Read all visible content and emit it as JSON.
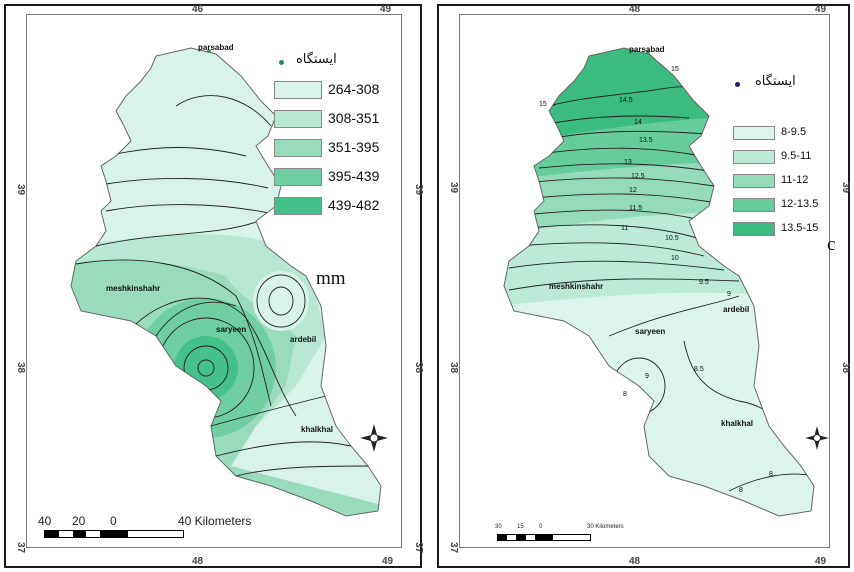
{
  "left_map": {
    "ticks": {
      "top_left": "46",
      "top_right": "49",
      "bottom_left": "48",
      "bottom_right": "49",
      "lat_upper": "39",
      "lat_lower": "38",
      "lat_bottom": "37"
    },
    "places": {
      "parsabad": "parsabad",
      "meshkinshahr": "meshkinshahr",
      "ardebil": "ardebil",
      "saryeen": "saryeen",
      "khalkhal": "khalkhal"
    },
    "station_key": "ایستگاه",
    "legend": [
      {
        "label": "264-308",
        "color": "#d9f3ea"
      },
      {
        "label": "308-351",
        "color": "#b8e8d4"
      },
      {
        "label": "351-395",
        "color": "#98dcbd"
      },
      {
        "label": "395-439",
        "color": "#6fcfa3"
      },
      {
        "label": "439-482",
        "color": "#45c08a"
      }
    ],
    "unit": "mm",
    "scale_labels": [
      "40",
      "20",
      "0",
      "40 Kilometers"
    ]
  },
  "right_map": {
    "ticks": {
      "top_left": "48",
      "top_right": "49",
      "bottom_left": "48",
      "bottom_right": "49",
      "lat_upper": "39",
      "lat_lower": "38",
      "lat_bottom": "37"
    },
    "places": {
      "parsabad": "parsabad",
      "meshkinshahr": "meshkinshahr",
      "ardebil": "ardebil",
      "saryeen": "saryeen",
      "khalkhal": "khalkhal"
    },
    "station_key": "ایستگاه",
    "legend": [
      {
        "label": "8-9.5",
        "color": "#dcf4ec"
      },
      {
        "label": "9.5-11",
        "color": "#bcead7"
      },
      {
        "label": "11-12",
        "color": "#93dbba"
      },
      {
        "label": "12-13.5",
        "color": "#66cc9c"
      },
      {
        "label": "13.5-15",
        "color": "#3bbb80"
      }
    ],
    "panel_letter": "c",
    "isoline_labels": [
      "15",
      "15",
      "14.5",
      "14",
      "13.5",
      "13",
      "12.5",
      "12",
      "11.5",
      "11",
      "10.5",
      "10",
      "9.5",
      "9",
      "9",
      "8.5",
      "8",
      "8",
      "8"
    ],
    "scale_labels": [
      "30",
      "15",
      "0",
      "30 Kilometers"
    ]
  }
}
